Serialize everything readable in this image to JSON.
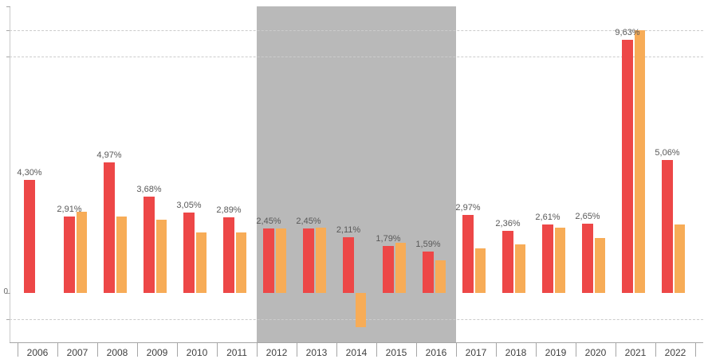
{
  "chart_data": {
    "type": "bar",
    "title": "",
    "xlabel": "",
    "ylabel": "",
    "categories": [
      "2006",
      "2007",
      "2008",
      "2009",
      "2010",
      "2011",
      "2012",
      "2013",
      "2014",
      "2015",
      "2016",
      "2017",
      "2018",
      "2019",
      "2020",
      "2021",
      "2022"
    ],
    "series": [
      {
        "name": "red-series",
        "color": "#ed4747",
        "values": [
          4.3,
          2.91,
          4.97,
          3.68,
          3.05,
          2.89,
          2.45,
          2.45,
          2.11,
          1.79,
          1.59,
          2.97,
          2.36,
          2.61,
          2.65,
          9.63,
          5.06
        ],
        "labels": [
          "4,30%",
          "2,91%",
          "4,97%",
          "3,68%",
          "3,05%",
          "2,89%",
          "2,45%",
          "2,45%",
          "2,11%",
          "1,79%",
          "1,59%",
          "2,97%",
          "2,36%",
          "2,61%",
          "2,65%",
          "9,63%",
          "5,06%"
        ]
      },
      {
        "name": "orange-series",
        "color": "#f7ac57",
        "values": [
          null,
          3.1,
          2.9,
          2.8,
          2.3,
          2.3,
          2.45,
          2.5,
          -1.3,
          1.9,
          1.25,
          1.7,
          1.85,
          2.5,
          2.1,
          10.0,
          2.6
        ]
      }
    ],
    "highlight_band": {
      "start_category": "2012",
      "end_category": "2016",
      "color": "#b9b9b9"
    },
    "gridlines": [
      10,
      9,
      -1
    ],
    "grid_style": "dashed",
    "zero_tick_label": "0",
    "ylim": [
      -1.9,
      10.9
    ],
    "legend": "none"
  }
}
